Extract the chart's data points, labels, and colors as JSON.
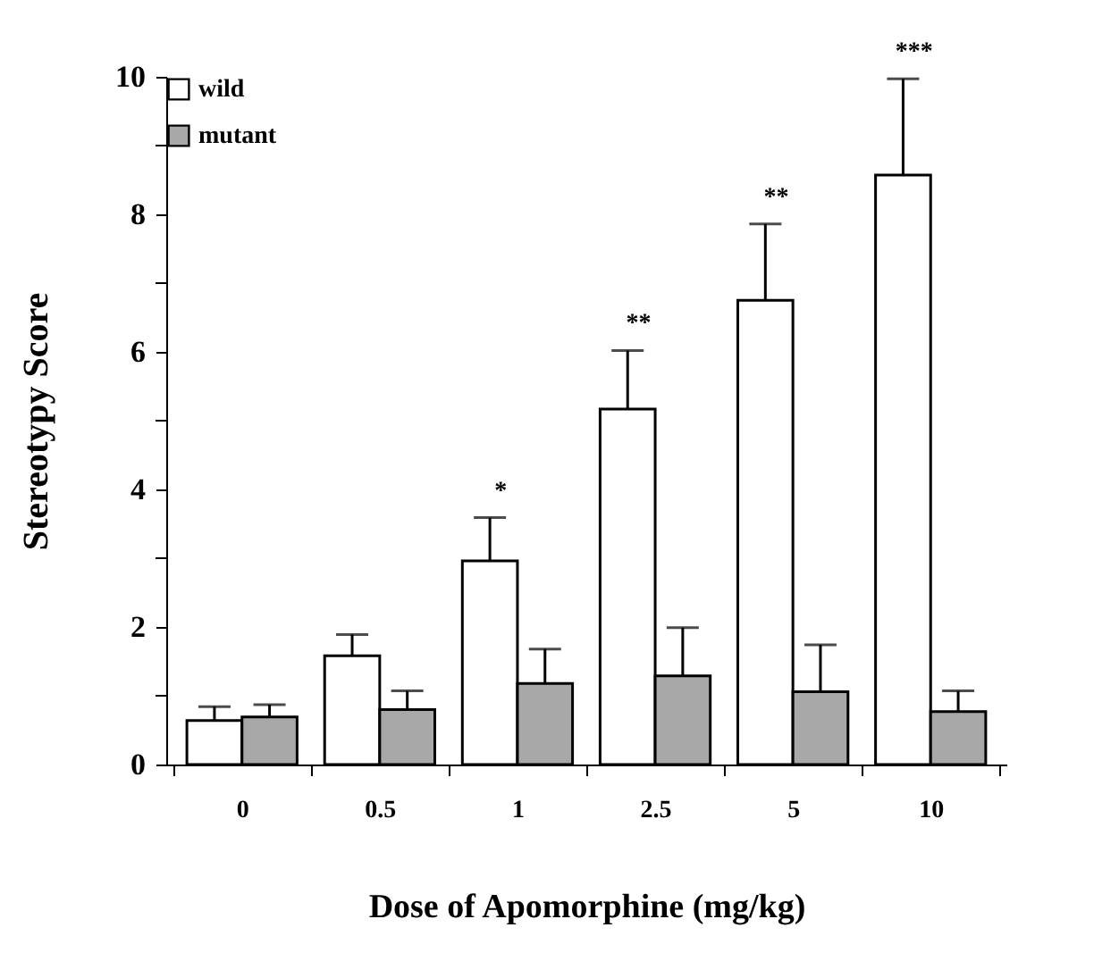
{
  "chart_data": {
    "type": "bar",
    "xlabel": "Dose of Apomorphine (mg/kg)",
    "ylabel": "Stereotypy   Score",
    "categories": [
      "0",
      "0.5",
      "1",
      "2.5",
      "5",
      "10"
    ],
    "series": [
      {
        "name": "wild",
        "color": "#ffffff",
        "values": [
          0.64,
          1.58,
          2.96,
          5.17,
          6.75,
          8.57
        ],
        "errors": [
          [
            0.64,
            0.84
          ],
          [
            1.58,
            1.89
          ],
          [
            2.96,
            3.59
          ],
          [
            5.17,
            6.02
          ],
          [
            6.75,
            7.86
          ],
          [
            8.57,
            9.97
          ]
        ]
      },
      {
        "name": "mutant",
        "color": "#a8a8a8",
        "values": [
          0.69,
          0.8,
          1.18,
          1.29,
          1.06,
          0.77
        ],
        "errors": [
          [
            0.69,
            0.87
          ],
          [
            0.8,
            1.07
          ],
          [
            1.18,
            1.68
          ],
          [
            1.29,
            1.99
          ],
          [
            1.06,
            1.74
          ],
          [
            0.77,
            1.07
          ]
        ]
      }
    ],
    "ylim": [
      0,
      10
    ],
    "yticks": [
      0,
      {
        "value": 1,
        "label": null
      },
      2,
      {
        "value": 3,
        "label": null
      },
      4,
      {
        "value": 5,
        "label": null
      },
      6,
      {
        "value": 7,
        "label": null
      },
      8,
      {
        "value": 9,
        "label": null
      },
      10
    ],
    "annotations": [
      "*",
      "**",
      "**",
      "***"
    ],
    "grid": false,
    "legend": "top left"
  }
}
